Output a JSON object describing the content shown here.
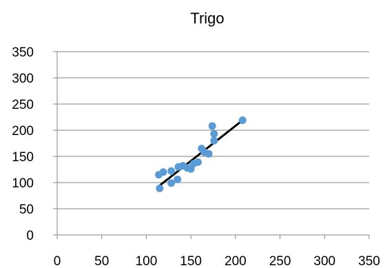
{
  "chart_data": {
    "type": "scatter",
    "title": "Trigo",
    "xlabel": "",
    "ylabel": "",
    "xlim": [
      0,
      350
    ],
    "ylim": [
      0,
      350
    ],
    "x_ticks": [
      "0",
      "50",
      "100",
      "150",
      "200",
      "250",
      "300",
      "350"
    ],
    "y_ticks": [
      "0",
      "50",
      "100",
      "150",
      "200",
      "250",
      "300",
      "350"
    ],
    "grid": "horizontal",
    "legend": "none",
    "series": [
      {
        "color": "#5b9bd5",
        "points": [
          {
            "x": 114,
            "y": 115
          },
          {
            "x": 115,
            "y": 89
          },
          {
            "x": 119,
            "y": 120
          },
          {
            "x": 128,
            "y": 122
          },
          {
            "x": 128,
            "y": 99
          },
          {
            "x": 135,
            "y": 106
          },
          {
            "x": 136,
            "y": 130
          },
          {
            "x": 141,
            "y": 132
          },
          {
            "x": 146,
            "y": 128
          },
          {
            "x": 150,
            "y": 126
          },
          {
            "x": 153,
            "y": 136
          },
          {
            "x": 158,
            "y": 139
          },
          {
            "x": 162,
            "y": 165
          },
          {
            "x": 165,
            "y": 158
          },
          {
            "x": 170,
            "y": 155
          },
          {
            "x": 174,
            "y": 208
          },
          {
            "x": 176,
            "y": 193
          },
          {
            "x": 176,
            "y": 180
          },
          {
            "x": 208,
            "y": 219
          }
        ]
      }
    ],
    "trendline": {
      "color": "#000000",
      "points": [
        {
          "x": 114,
          "y": 93
        },
        {
          "x": 208,
          "y": 219
        }
      ]
    }
  }
}
